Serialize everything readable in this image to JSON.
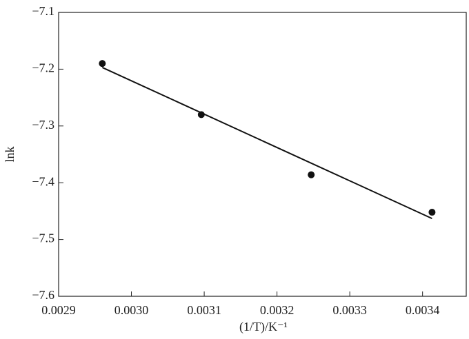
{
  "chart_data": {
    "type": "scatter",
    "x_label": "(1/T)/K⁻¹",
    "y_label": "lnk",
    "series": [
      {
        "name": "data",
        "color": "#111111",
        "x": [
          0.00296,
          0.003096,
          0.003247,
          0.003413
        ],
        "values": [
          -7.19,
          -7.28,
          -7.386,
          -7.452
        ]
      },
      {
        "name": "fit",
        "color": "#111111",
        "x": [
          0.00296,
          0.003413
        ],
        "values": [
          -7.197,
          -7.463
        ]
      }
    ],
    "xlim": [
      0.0029,
      0.00346
    ],
    "xticks": [
      0.0029,
      {
        "value": 0.003,
        "label": "0.0030"
      },
      0.0031,
      0.0032,
      0.0033,
      0.0034
    ],
    "ylim": [
      -7.6,
      -7.1
    ],
    "yticks": [
      {
        "value": -7.6,
        "label": "−7.6"
      },
      {
        "value": -7.5,
        "label": "−7.5"
      },
      {
        "value": -7.4,
        "label": "−7.4"
      },
      {
        "value": -7.3,
        "label": "−7.3"
      },
      {
        "value": -7.2,
        "label": "−7.2"
      },
      {
        "value": -7.1,
        "label": "−7.1"
      }
    ]
  }
}
